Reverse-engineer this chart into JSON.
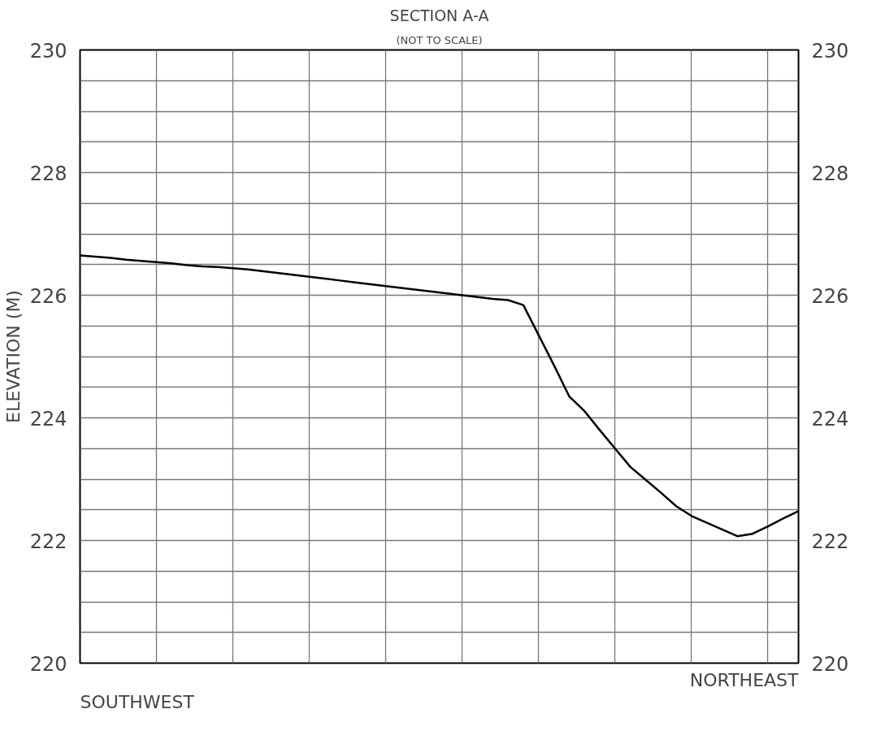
{
  "chart_data": {
    "type": "line",
    "title": "SECTION A-A",
    "subtitle": "(NOT TO SCALE)",
    "ylabel": "ELEVATION (M)",
    "annotations": [
      "SOUTHWEST",
      "NORTHEAST"
    ],
    "categories": [
      null,
      null,
      null,
      null,
      null,
      null,
      null,
      null,
      null,
      null,
      null,
      null,
      null,
      null,
      null,
      null,
      null,
      null,
      null,
      null,
      null,
      null,
      null,
      null,
      null,
      null,
      null,
      null,
      null,
      null,
      null,
      null,
      null,
      null,
      null,
      null,
      null,
      null,
      null,
      null,
      null,
      null,
      null,
      null,
      null,
      null,
      null,
      null
    ],
    "series": [
      {
        "color": "#000000",
        "values": [
          226.65,
          226.63,
          226.61,
          226.58,
          226.56,
          226.54,
          226.52,
          226.49,
          226.47,
          226.46,
          226.44,
          226.42,
          226.39,
          226.36,
          226.33,
          226.3,
          226.27,
          226.24,
          226.21,
          226.18,
          226.15,
          226.12,
          226.09,
          226.06,
          226.03,
          226.0,
          225.97,
          225.94,
          225.92,
          225.84,
          225.35,
          224.86,
          224.35,
          224.11,
          223.8,
          223.5,
          223.2,
          222.99,
          222.78,
          222.56,
          222.4,
          222.29,
          222.18,
          222.07,
          222.11,
          222.23,
          222.36,
          222.48
        ]
      }
    ],
    "ylim": [
      220,
      230
    ],
    "yticks": [
      220,
      {
        "value": 220.5,
        "label": null
      },
      {
        "value": 221,
        "label": null
      },
      {
        "value": 221.5,
        "label": null
      },
      222,
      {
        "value": 222.5,
        "label": null
      },
      {
        "value": 223,
        "label": null
      },
      {
        "value": 223.5,
        "label": null
      },
      224,
      {
        "value": 224.5,
        "label": null
      },
      {
        "value": 225,
        "label": null
      },
      {
        "value": 225.5,
        "label": null
      },
      226,
      {
        "value": 226.5,
        "label": null
      },
      {
        "value": 227,
        "label": null
      },
      {
        "value": 227.5,
        "label": null
      },
      228,
      {
        "value": 228.5,
        "label": null
      },
      {
        "value": 229,
        "label": null
      },
      {
        "value": 229.5,
        "label": null
      },
      230
    ],
    "y2lim": [
      220,
      230
    ],
    "y2ticks": [
      220,
      222,
      224,
      226,
      228,
      230
    ],
    "grid": true,
    "tick_labels": "y",
    "line_style": "solid"
  }
}
